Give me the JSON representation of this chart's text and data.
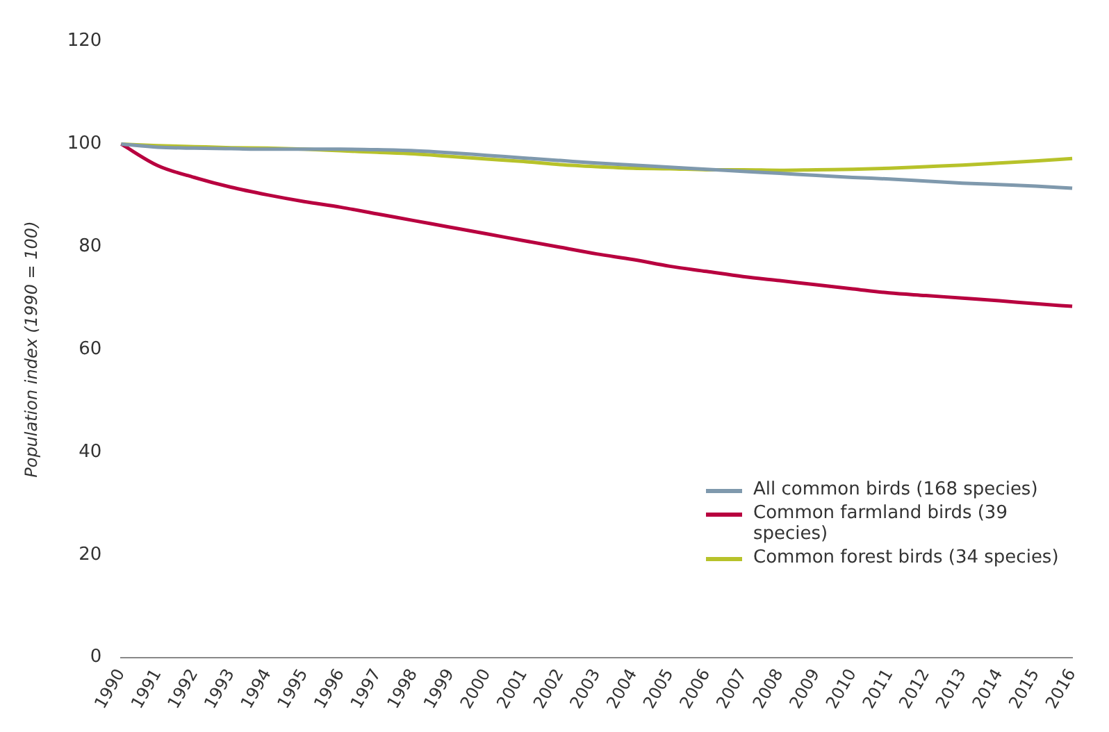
{
  "chart_data": {
    "type": "line",
    "ylabel": "Population index (1990 = 100)",
    "categories": [
      "1990",
      "1991",
      "1992",
      "1993",
      "1994",
      "1995",
      "1996",
      "1997",
      "1998",
      "1999",
      "2000",
      "2001",
      "2002",
      "2003",
      "2004",
      "2005",
      "2006",
      "2007",
      "2008",
      "2009",
      "2010",
      "2011",
      "2012",
      "2013",
      "2014",
      "2015",
      "2016"
    ],
    "series": [
      {
        "name": "All common birds (168 species)",
        "color": "#7f99ad",
        "values": [
          100,
          99.4,
          99.2,
          99.1,
          99,
          99,
          99,
          98.9,
          98.7,
          98.3,
          97.8,
          97.3,
          96.8,
          96.3,
          95.9,
          95.5,
          95.1,
          94.7,
          94.3,
          93.9,
          93.5,
          93.2,
          92.8,
          92.4,
          92.1,
          91.8,
          91.4
        ]
      },
      {
        "name": "Common farmland birds (39 species)",
        "color": "#b8003f",
        "values": [
          100,
          95.8,
          93.5,
          91.6,
          90.1,
          88.8,
          87.7,
          86.4,
          85.1,
          83.8,
          82.5,
          81.2,
          79.9,
          78.6,
          77.5,
          76.2,
          75.2,
          74.2,
          73.4,
          72.6,
          71.8,
          71,
          70.5,
          70,
          69.5,
          68.9,
          68.4
        ]
      },
      {
        "name": "Common forest birds (34 species)",
        "color": "#b7c22a",
        "values": [
          100,
          99.7,
          99.5,
          99.3,
          99.2,
          99,
          98.7,
          98.4,
          98.1,
          97.6,
          97.1,
          96.6,
          96,
          95.6,
          95.3,
          95.2,
          95,
          95,
          94.9,
          95,
          95.1,
          95.3,
          95.6,
          95.9,
          96.3,
          96.7,
          97.2
        ]
      }
    ],
    "ylim": [
      0,
      120
    ],
    "yticks": [
      0,
      20,
      40,
      60,
      80,
      100,
      120
    ],
    "grid": false,
    "legend": "bottom right",
    "marker": "none",
    "line_style": "solid"
  }
}
